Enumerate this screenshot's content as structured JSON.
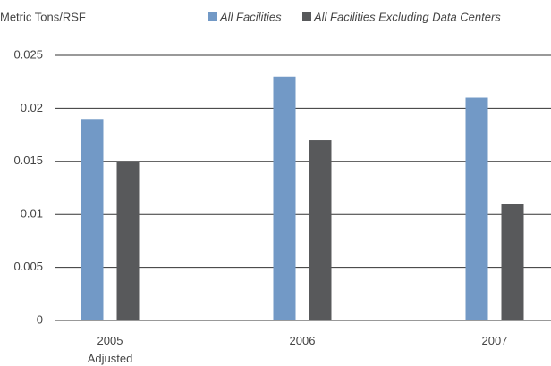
{
  "chart_data": {
    "type": "bar",
    "y_label": "Metric Tons/RSF",
    "categories": [
      "2005\nAdjusted",
      "2006",
      "2007"
    ],
    "series": [
      {
        "name": "All Facilities",
        "color": "#7299c6",
        "values": [
          0.019,
          0.023,
          0.021
        ]
      },
      {
        "name": "All Facilities Excluding Data Centers",
        "color": "#58595b",
        "values": [
          0.015,
          0.017,
          0.011
        ]
      }
    ],
    "ylim": [
      0,
      0.025
    ],
    "yticks": [
      0,
      0.005,
      0.01,
      0.015,
      0.02,
      0.025
    ],
    "grid": true
  }
}
